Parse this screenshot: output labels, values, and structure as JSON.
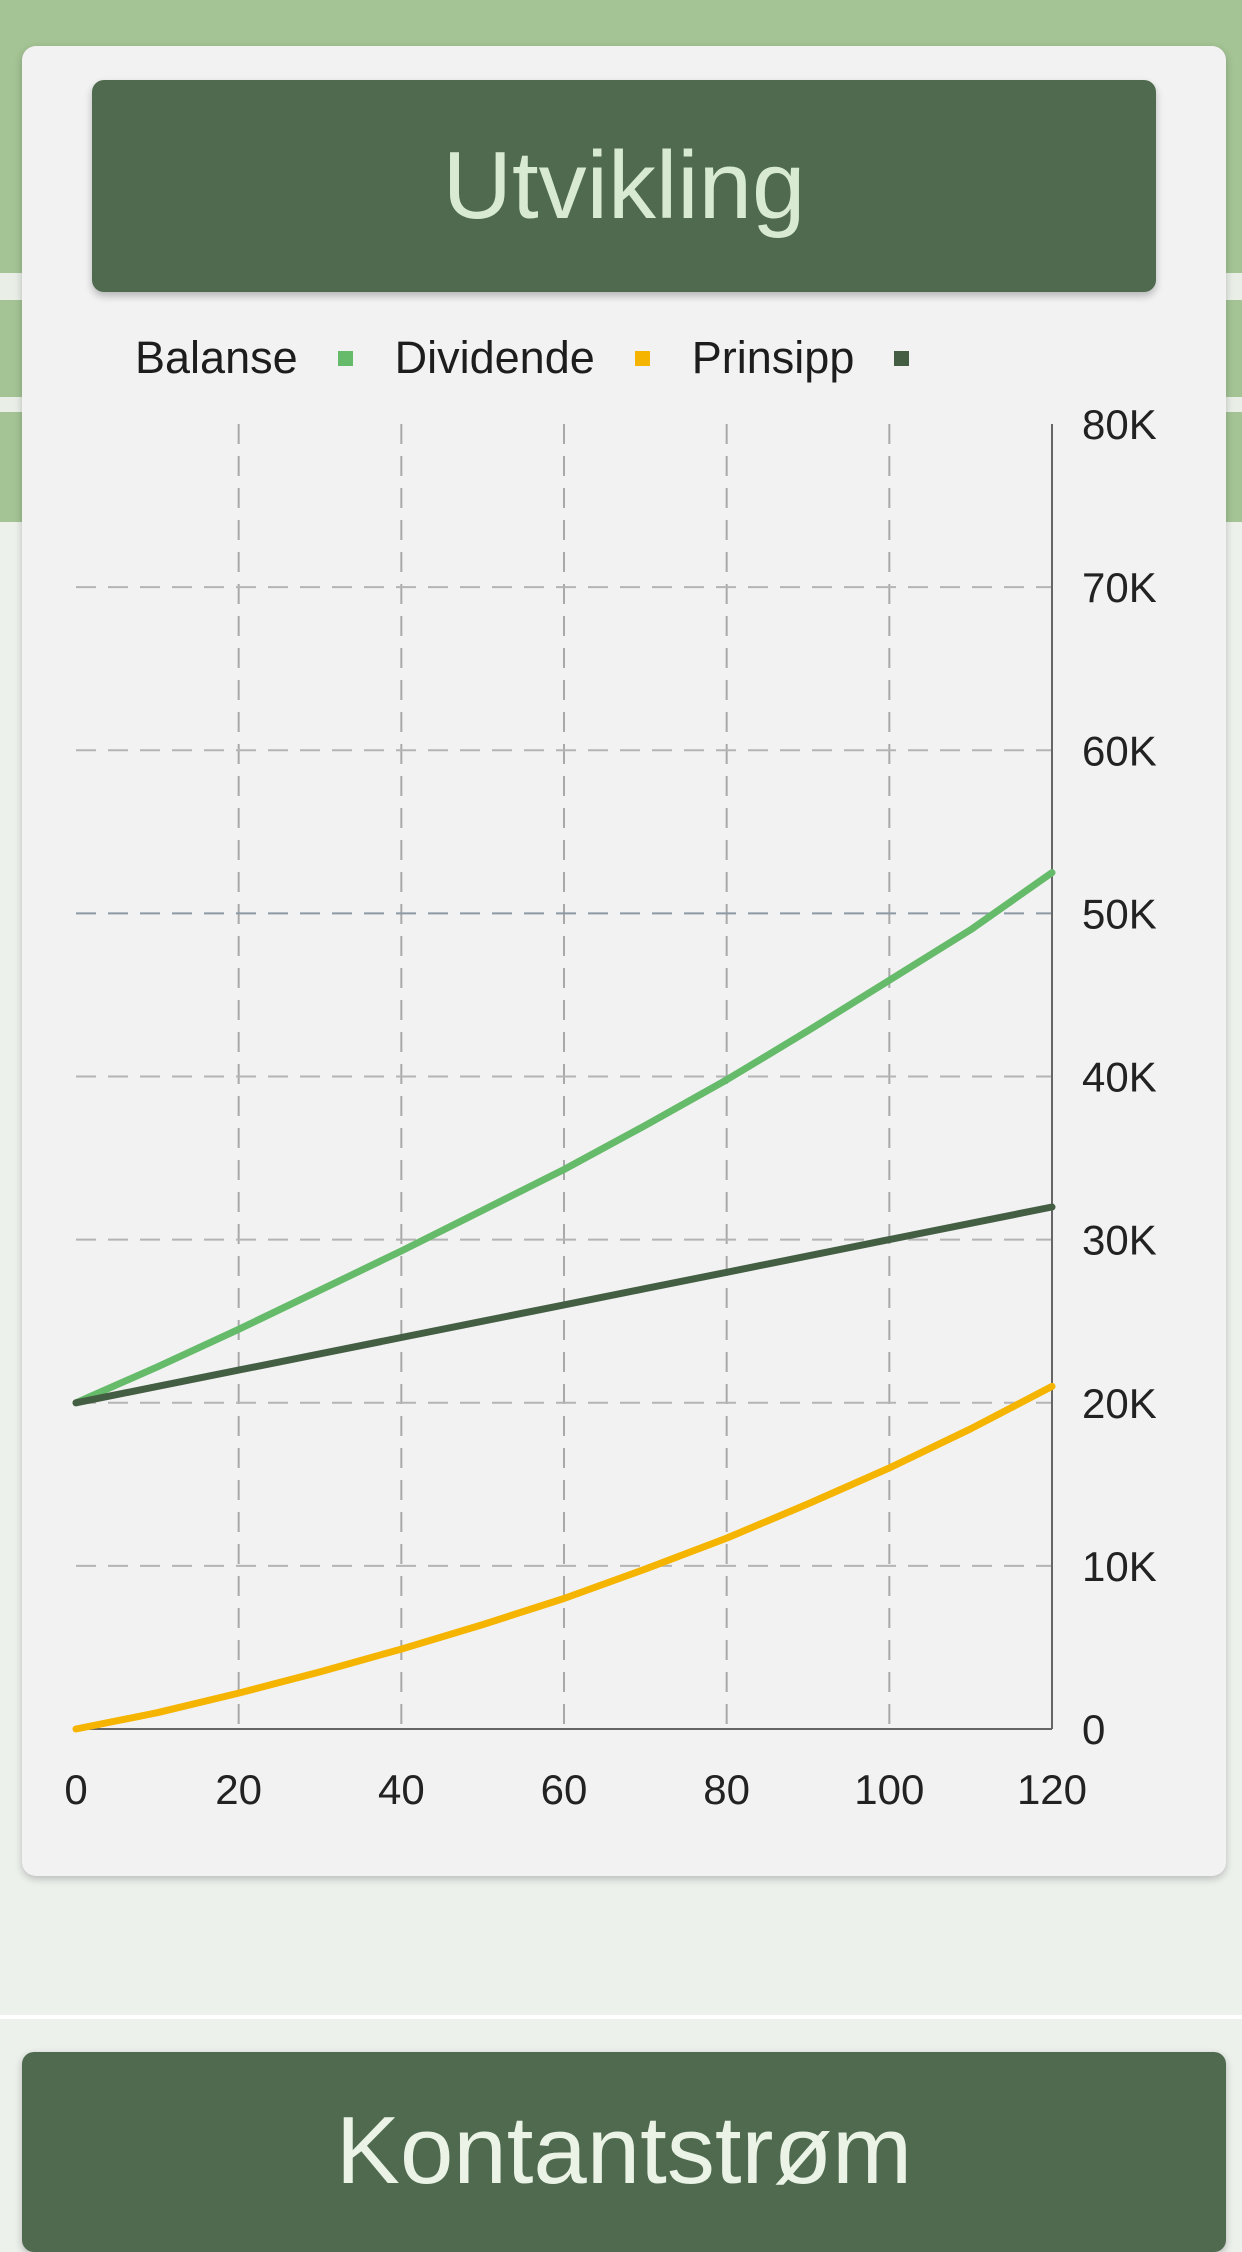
{
  "page": {
    "title": "Utvikling",
    "next_section_title": "Kontantstrøm"
  },
  "colors": {
    "header_bg": "#a4c495",
    "title_bar_bg": "#4f6a4f",
    "balanse": "#66bb6a",
    "dividende": "#f5b400",
    "prinsipp": "#435e43"
  },
  "chart_data": {
    "type": "line",
    "legend_position": "top",
    "grid": true,
    "x_ticks": [
      "0",
      "20",
      "40",
      "60",
      "80",
      "100",
      "120"
    ],
    "y_ticks": [
      "0",
      "10K",
      "20K",
      "30K",
      "40K",
      "50K",
      "60K",
      "70K",
      "80K"
    ],
    "xlim": [
      0,
      120
    ],
    "ylim": [
      0,
      80000
    ],
    "y_axis_side": "right",
    "x": [
      0,
      10,
      20,
      30,
      40,
      50,
      60,
      70,
      80,
      90,
      100,
      110,
      120
    ],
    "series": [
      {
        "name": "Balanse",
        "values": [
          20000,
          22200,
          24500,
          26900,
          29300,
          31800,
          34300,
          37000,
          39800,
          42800,
          45900,
          49000,
          52500
        ]
      },
      {
        "name": "Dividende",
        "values": [
          0,
          1000,
          2200,
          3500,
          4900,
          6400,
          8000,
          9800,
          11700,
          13800,
          16000,
          18400,
          21000
        ]
      },
      {
        "name": "Prinsipp",
        "values": [
          20000,
          21000,
          22000,
          23000,
          24000,
          25000,
          26000,
          27000,
          28000,
          29000,
          30000,
          31000,
          32000
        ]
      }
    ]
  }
}
